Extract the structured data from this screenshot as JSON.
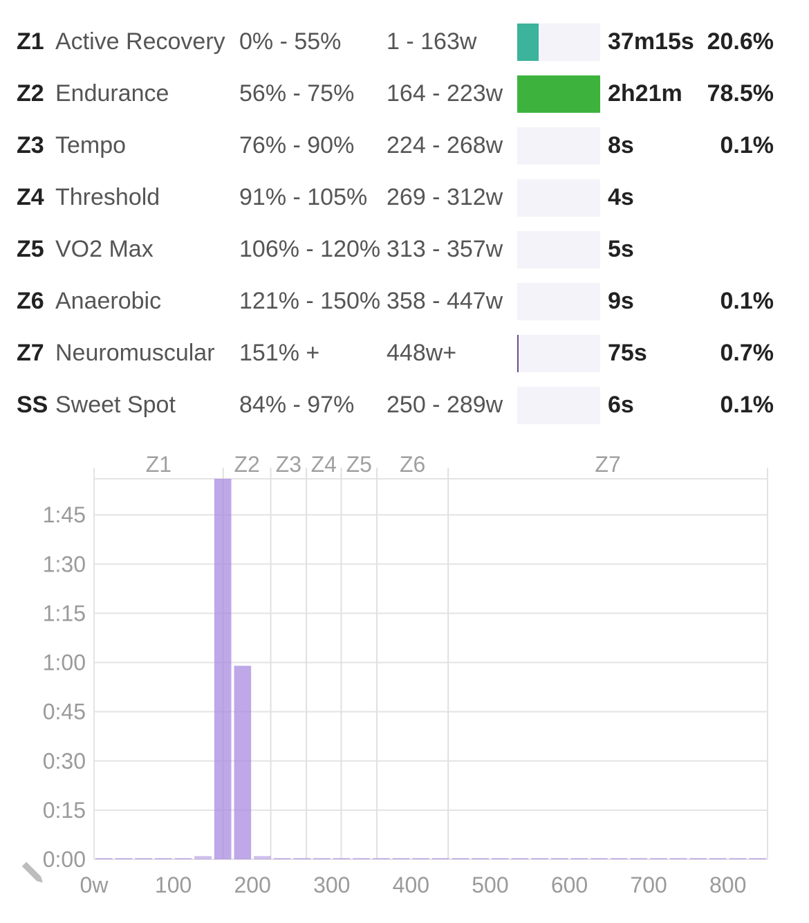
{
  "zones": [
    {
      "id": "Z1",
      "name": "Active Recovery",
      "pct": "0% - 55%",
      "watts": "1 - 163w",
      "time": "37m15s",
      "share": "20.6%",
      "fraction": 0.26,
      "color": "#3cb39b"
    },
    {
      "id": "Z2",
      "name": "Endurance",
      "pct": "56% - 75%",
      "watts": "164 - 223w",
      "time": "2h21m",
      "share": "78.5%",
      "fraction": 1.0,
      "color": "#3db33d"
    },
    {
      "id": "Z3",
      "name": "Tempo",
      "pct": "76% - 90%",
      "watts": "224 - 268w",
      "time": "8s",
      "share": "0.1%",
      "fraction": 0.0,
      "color": "#e6c619"
    },
    {
      "id": "Z4",
      "name": "Threshold",
      "pct": "91% - 105%",
      "watts": "269 - 312w",
      "time": "4s",
      "share": "",
      "fraction": 0.0,
      "color": "#f39c12"
    },
    {
      "id": "Z5",
      "name": "VO2 Max",
      "pct": "106% - 120%",
      "watts": "313 - 357w",
      "time": "5s",
      "share": "",
      "fraction": 0.0,
      "color": "#e74c3c"
    },
    {
      "id": "Z6",
      "name": "Anaerobic",
      "pct": "121% - 150%",
      "watts": "358 - 447w",
      "time": "9s",
      "share": "0.1%",
      "fraction": 0.0,
      "color": "#c0392b"
    },
    {
      "id": "Z7",
      "name": "Neuromuscular",
      "pct": "151% +",
      "watts": "448w+",
      "time": "75s",
      "share": "0.7%",
      "fraction": 0.01,
      "color": "#6a4c93"
    },
    {
      "id": "SS",
      "name": "Sweet Spot",
      "pct": "84% - 97%",
      "watts": "250 - 289w",
      "time": "6s",
      "share": "0.1%",
      "fraction": 0.0,
      "color": "#f1c40f"
    }
  ],
  "chart_data": {
    "type": "bar",
    "xlabel": "",
    "ylabel": "",
    "x_unit": "w",
    "xlim": [
      0,
      850
    ],
    "ylim": [
      0,
      116
    ],
    "bin_width": 25,
    "x_ticks": [
      0,
      100,
      200,
      300,
      400,
      500,
      600,
      700,
      800
    ],
    "x_tick_labels": [
      "0w",
      "100",
      "200",
      "300",
      "400",
      "500",
      "600",
      "700",
      "800"
    ],
    "y_ticks": [
      0,
      15,
      30,
      45,
      60,
      75,
      90,
      105
    ],
    "y_tick_labels": [
      "0:00",
      "0:15",
      "0:30",
      "0:45",
      "1:00",
      "1:15",
      "1:30",
      "1:45"
    ],
    "zone_boundaries": [
      163,
      223,
      268,
      312,
      357,
      447
    ],
    "zone_labels": [
      "Z1",
      "Z2",
      "Z3",
      "Z4",
      "Z5",
      "Z6",
      "Z7"
    ],
    "bar_color": "#a88be0",
    "bars": [
      {
        "x": 0,
        "minutes": 0.3
      },
      {
        "x": 25,
        "minutes": 0.2
      },
      {
        "x": 50,
        "minutes": 0.2
      },
      {
        "x": 75,
        "minutes": 0.2
      },
      {
        "x": 100,
        "minutes": 0.2
      },
      {
        "x": 125,
        "minutes": 1.0
      },
      {
        "x": 150,
        "minutes": 117
      },
      {
        "x": 175,
        "minutes": 59
      },
      {
        "x": 200,
        "minutes": 1.0
      },
      {
        "x": 225,
        "minutes": 0.2
      },
      {
        "x": 250,
        "minutes": 0.2
      },
      {
        "x": 275,
        "minutes": 0.2
      },
      {
        "x": 300,
        "minutes": 0.2
      },
      {
        "x": 325,
        "minutes": 0.2
      },
      {
        "x": 350,
        "minutes": 0.2
      },
      {
        "x": 375,
        "minutes": 0.2
      },
      {
        "x": 400,
        "minutes": 0.2
      },
      {
        "x": 425,
        "minutes": 0.2
      },
      {
        "x": 450,
        "minutes": 0.2
      },
      {
        "x": 475,
        "minutes": 0.2
      },
      {
        "x": 500,
        "minutes": 0.2
      },
      {
        "x": 525,
        "minutes": 0.2
      },
      {
        "x": 550,
        "minutes": 0.2
      },
      {
        "x": 575,
        "minutes": 0.2
      },
      {
        "x": 600,
        "minutes": 0.2
      },
      {
        "x": 625,
        "minutes": 0.2
      },
      {
        "x": 650,
        "minutes": 0.2
      },
      {
        "x": 675,
        "minutes": 0.2
      },
      {
        "x": 700,
        "minutes": 0.2
      },
      {
        "x": 725,
        "minutes": 0.2
      },
      {
        "x": 750,
        "minutes": 0.2
      },
      {
        "x": 775,
        "minutes": 0.2
      },
      {
        "x": 800,
        "minutes": 0.2
      },
      {
        "x": 825,
        "minutes": 0.2
      }
    ],
    "edit_icon": "pencil-icon"
  }
}
